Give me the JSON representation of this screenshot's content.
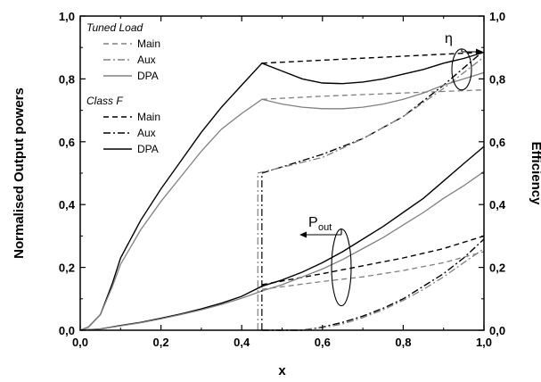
{
  "chart_data": {
    "type": "line",
    "xlabel": "x",
    "ylabel": "Normalised Output powers",
    "y2label": "Efficiency",
    "xlim": [
      0,
      1
    ],
    "ylim": [
      0,
      1
    ],
    "y2lim": [
      0,
      1
    ],
    "xticks": [
      "0,0",
      "0,2",
      "0,4",
      "0,6",
      "0,8",
      "1,0"
    ],
    "yticks": [
      "0,0",
      "0,2",
      "0,4",
      "0,6",
      "0,8",
      "1,0"
    ],
    "y2ticks": [
      "0,0",
      "0,2",
      "0,4",
      "0,6",
      "0,8",
      "1,0"
    ],
    "legend_placement": "top-left",
    "legend_groups": [
      {
        "title": "Tuned Load",
        "entries": [
          "Main",
          "Aux",
          "DPA"
        ]
      },
      {
        "title": "Class F",
        "entries": [
          "Main",
          "Aux",
          "DPA"
        ]
      }
    ],
    "annotations": {
      "eta": "η",
      "pout_main": "P",
      "pout_sub": "out"
    },
    "series": [
      {
        "name": "Main",
        "group": "Class F",
        "kind": "efficiency",
        "color": "#000000",
        "dash": "6,4",
        "x": [
          0.45,
          1.0
        ],
        "y": [
          0.85,
          0.885
        ]
      },
      {
        "name": "Aux",
        "group": "Class F",
        "kind": "efficiency",
        "color": "#000000",
        "dash": "8,3,2,3",
        "x": [
          0.45,
          0.6,
          0.7,
          0.8,
          0.9,
          1.0
        ],
        "y": [
          0.5,
          0.56,
          0.61,
          0.68,
          0.78,
          0.89
        ]
      },
      {
        "name": "DPA",
        "group": "Class F",
        "kind": "efficiency",
        "color": "#000000",
        "dash": "",
        "x": [
          0.0,
          0.02,
          0.05,
          0.08,
          0.1,
          0.15,
          0.2,
          0.25,
          0.3,
          0.35,
          0.4,
          0.45,
          0.5,
          0.55,
          0.6,
          0.65,
          0.7,
          0.75,
          0.8,
          0.85,
          0.9,
          0.95,
          1.0
        ],
        "y": [
          0.0,
          0.01,
          0.05,
          0.15,
          0.23,
          0.35,
          0.45,
          0.54,
          0.63,
          0.71,
          0.78,
          0.85,
          0.825,
          0.8,
          0.787,
          0.785,
          0.79,
          0.8,
          0.815,
          0.83,
          0.85,
          0.865,
          0.885
        ]
      },
      {
        "name": "Main",
        "group": "Tuned Load",
        "kind": "efficiency",
        "color": "#808080",
        "dash": "6,4",
        "x": [
          0.45,
          0.6,
          0.8,
          1.0
        ],
        "y": [
          0.735,
          0.745,
          0.755,
          0.765
        ]
      },
      {
        "name": "Aux",
        "group": "Tuned Load",
        "kind": "efficiency",
        "color": "#808080",
        "dash": "8,3,2,3",
        "x": [
          0.44,
          0.6,
          0.7,
          0.8,
          0.9,
          1.0
        ],
        "y": [
          0.5,
          0.55,
          0.61,
          0.68,
          0.77,
          0.87
        ]
      },
      {
        "name": "DPA",
        "group": "Tuned Load",
        "kind": "efficiency",
        "color": "#808080",
        "dash": "",
        "x": [
          0.0,
          0.02,
          0.05,
          0.08,
          0.1,
          0.15,
          0.2,
          0.25,
          0.3,
          0.35,
          0.4,
          0.45,
          0.5,
          0.55,
          0.6,
          0.65,
          0.7,
          0.75,
          0.8,
          0.85,
          0.9,
          0.95,
          1.0
        ],
        "y": [
          0.0,
          0.01,
          0.05,
          0.14,
          0.21,
          0.32,
          0.41,
          0.49,
          0.57,
          0.64,
          0.69,
          0.735,
          0.72,
          0.71,
          0.705,
          0.705,
          0.71,
          0.72,
          0.735,
          0.755,
          0.78,
          0.8,
          0.82
        ]
      },
      {
        "name": "Main",
        "group": "Class F",
        "kind": "power",
        "color": "#000000",
        "dash": "6,4",
        "x": [
          0.45,
          0.6,
          0.7,
          0.8,
          0.9,
          1.0
        ],
        "y": [
          0.145,
          0.18,
          0.205,
          0.23,
          0.26,
          0.3
        ]
      },
      {
        "name": "Aux",
        "group": "Class F",
        "kind": "power",
        "color": "#000000",
        "dash": "8,3,2,3",
        "x": [
          0.45,
          0.55,
          0.6,
          0.65,
          0.7,
          0.75,
          0.8,
          0.85,
          0.9,
          0.95,
          1.0
        ],
        "y": [
          0.0,
          0.0,
          0.01,
          0.025,
          0.045,
          0.07,
          0.1,
          0.14,
          0.18,
          0.23,
          0.29
        ]
      },
      {
        "name": "DPA",
        "group": "Class F",
        "kind": "power",
        "color": "#000000",
        "dash": "",
        "x": [
          0.0,
          0.05,
          0.1,
          0.15,
          0.2,
          0.25,
          0.3,
          0.35,
          0.4,
          0.45,
          0.5,
          0.55,
          0.6,
          0.65,
          0.7,
          0.75,
          0.8,
          0.85,
          0.9,
          0.95,
          1.0
        ],
        "y": [
          0.0,
          0.004,
          0.015,
          0.025,
          0.038,
          0.052,
          0.068,
          0.086,
          0.108,
          0.14,
          0.16,
          0.185,
          0.215,
          0.25,
          0.29,
          0.33,
          0.375,
          0.42,
          0.475,
          0.53,
          0.585
        ]
      },
      {
        "name": "Main",
        "group": "Tuned Load",
        "kind": "power",
        "color": "#808080",
        "dash": "6,4",
        "x": [
          0.45,
          0.6,
          0.7,
          0.8,
          0.9,
          1.0
        ],
        "y": [
          0.13,
          0.155,
          0.17,
          0.19,
          0.215,
          0.25
        ]
      },
      {
        "name": "Aux",
        "group": "Tuned Load",
        "kind": "power",
        "color": "#808080",
        "dash": "8,3,2,3",
        "x": [
          0.45,
          0.55,
          0.6,
          0.65,
          0.7,
          0.75,
          0.8,
          0.85,
          0.9,
          0.95,
          1.0
        ],
        "y": [
          0.0,
          0.0,
          0.008,
          0.02,
          0.04,
          0.065,
          0.095,
          0.13,
          0.17,
          0.215,
          0.26
        ]
      },
      {
        "name": "DPA",
        "group": "Tuned Load",
        "kind": "power",
        "color": "#808080",
        "dash": "",
        "x": [
          0.0,
          0.05,
          0.1,
          0.15,
          0.2,
          0.25,
          0.3,
          0.35,
          0.4,
          0.45,
          0.5,
          0.55,
          0.6,
          0.65,
          0.7,
          0.75,
          0.8,
          0.85,
          0.9,
          0.95,
          1.0
        ],
        "y": [
          0.0,
          0.004,
          0.014,
          0.024,
          0.036,
          0.05,
          0.065,
          0.082,
          0.102,
          0.125,
          0.145,
          0.17,
          0.195,
          0.225,
          0.26,
          0.295,
          0.335,
          0.375,
          0.42,
          0.46,
          0.505
        ]
      }
    ]
  }
}
